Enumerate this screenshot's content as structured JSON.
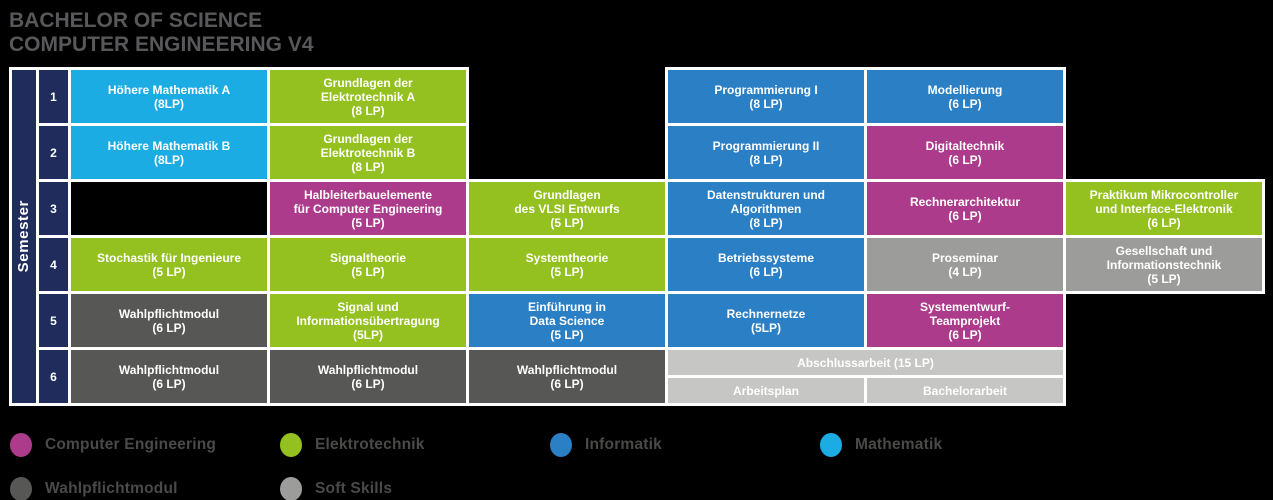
{
  "title": {
    "line1": "BACHELOR OF SCIENCE",
    "line2": "COMPUTER ENGINEERING V4"
  },
  "colors": {
    "magenta": "#AD3B8C",
    "green": "#94C11F",
    "blue": "#2B7FC5",
    "cyan": "#1BACE3",
    "darkgray": "#575756",
    "gray": "#9C9C9B",
    "lightgray": "#C6C6C5",
    "navy": "#1F2C5C",
    "frame": "#FFFFFF",
    "background": "#000000",
    "text_light": "#FFFFFF",
    "text_dark": "#4A4A49"
  },
  "table": {
    "semester_label": "Semester",
    "rows": [
      {
        "num": "1",
        "cells": [
          {
            "col": 1,
            "color": "cyan",
            "lines": [
              "Höhere Mathematik A",
              "(8LP)"
            ]
          },
          {
            "col": 2,
            "color": "green",
            "lines": [
              "Grundlagen der",
              "Elektrotechnik A",
              "(8 LP)"
            ]
          },
          {
            "col": 4,
            "color": "blue",
            "lines": [
              "Programmierung I",
              "(8 LP)"
            ]
          },
          {
            "col": 5,
            "color": "blue",
            "lines": [
              "Modellierung",
              "(6 LP)"
            ]
          }
        ]
      },
      {
        "num": "2",
        "cells": [
          {
            "col": 1,
            "color": "cyan",
            "lines": [
              "Höhere Mathematik B",
              "(8LP)"
            ]
          },
          {
            "col": 2,
            "color": "green",
            "lines": [
              "Grundlagen der",
              "Elektrotechnik B",
              "(8 LP)"
            ]
          },
          {
            "col": 4,
            "color": "blue",
            "lines": [
              "Programmierung II",
              "(8 LP)"
            ]
          },
          {
            "col": 5,
            "color": "magenta",
            "lines": [
              "Digitaltechnik",
              "(6 LP)"
            ]
          }
        ]
      },
      {
        "num": "3",
        "cells": [
          {
            "col": 1,
            "type": "empty"
          },
          {
            "col": 2,
            "color": "magenta",
            "lines": [
              "Halbleiterbauelemente",
              "für Computer Engineering",
              "(5 LP)"
            ]
          },
          {
            "col": 3,
            "color": "green",
            "lines": [
              "Grundlagen",
              "des VLSI Entwurfs",
              "(5 LP)"
            ]
          },
          {
            "col": 4,
            "color": "blue",
            "lines": [
              "Datenstrukturen und",
              "Algorithmen",
              "(8 LP)"
            ]
          },
          {
            "col": 5,
            "color": "magenta",
            "lines": [
              "Rechnerarchitektur",
              "(6 LP)"
            ]
          },
          {
            "col": 6,
            "color": "green",
            "lines": [
              "Praktikum Mikrocontroller",
              "und Interface-Elektronik",
              "(6 LP)"
            ]
          }
        ]
      },
      {
        "num": "4",
        "cells": [
          {
            "col": 1,
            "color": "green",
            "lines": [
              "Stochastik für Ingenieure",
              "(5 LP)"
            ]
          },
          {
            "col": 2,
            "color": "green",
            "lines": [
              "Signaltheorie",
              "(5 LP)"
            ]
          },
          {
            "col": 3,
            "color": "green",
            "lines": [
              "Systemtheorie",
              "(5 LP)"
            ]
          },
          {
            "col": 4,
            "color": "blue",
            "lines": [
              "Betriebssysteme",
              "(6 LP)"
            ]
          },
          {
            "col": 5,
            "color": "gray",
            "lines": [
              "Proseminar",
              "(4 LP)"
            ]
          },
          {
            "col": 6,
            "color": "gray",
            "lines": [
              "Gesellschaft und",
              "Informationstechnik",
              "(5 LP)"
            ]
          }
        ]
      },
      {
        "num": "5",
        "cells": [
          {
            "col": 1,
            "color": "darkgray",
            "lines": [
              "Wahlpflichtmodul",
              "(6 LP)"
            ]
          },
          {
            "col": 2,
            "color": "green",
            "lines": [
              "Signal und",
              "Informationsübertragung",
              "(5LP)"
            ]
          },
          {
            "col": 3,
            "color": "blue",
            "lines": [
              "Einführung in",
              "Data Science",
              "(5 LP)"
            ]
          },
          {
            "col": 4,
            "color": "blue",
            "lines": [
              "Rechnernetze",
              "(5LP)"
            ]
          },
          {
            "col": 5,
            "color": "magenta",
            "lines": [
              "Systementwurf-",
              "Teamprojekt",
              "(6 LP)"
            ]
          }
        ]
      },
      {
        "num": "6",
        "cells": [
          {
            "col": 1,
            "color": "darkgray",
            "lines": [
              "Wahlpflichtmodul",
              "(6 LP)"
            ]
          },
          {
            "col": 2,
            "color": "darkgray",
            "lines": [
              "Wahlpflichtmodul",
              "(6 LP)"
            ]
          },
          {
            "col": 3,
            "color": "darkgray",
            "lines": [
              "Wahlpflichtmodul",
              "(6 LP)"
            ]
          },
          {
            "col": 4,
            "colspan": 2,
            "type": "thesis",
            "color": "lightgray",
            "title": "Abschlussarbeit (15 LP)",
            "subs": [
              "Arbeitsplan",
              "Bachelorarbeit"
            ]
          }
        ]
      }
    ]
  },
  "legend": {
    "rows": [
      [
        {
          "color": "magenta",
          "label": "Computer Engineering"
        },
        {
          "color": "green",
          "label": "Elektrotechnik"
        },
        {
          "color": "blue",
          "label": "Informatik"
        },
        {
          "color": "cyan",
          "label": "Mathematik"
        }
      ],
      [
        {
          "color": "darkgray",
          "label": "Wahlpflichtmodul"
        },
        {
          "color": "gray",
          "label": "Soft Skills"
        }
      ]
    ]
  }
}
